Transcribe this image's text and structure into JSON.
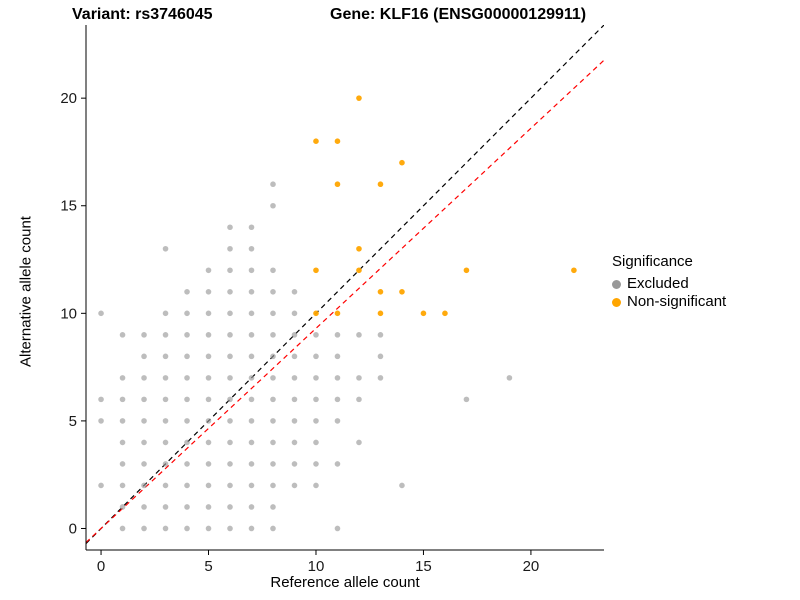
{
  "titles": {
    "left": "Variant: rs3746045",
    "right": "Gene: KLF16 (ENSG00000129911)"
  },
  "axes": {
    "x_label": "Reference allele count",
    "y_label": "Alternative allele count",
    "x_ticks": [
      0,
      5,
      10,
      15,
      20
    ],
    "y_ticks": [
      0,
      5,
      10,
      15,
      20
    ]
  },
  "legend": {
    "title": "Significance",
    "items": [
      {
        "label": "Excluded",
        "color": "#999999"
      },
      {
        "label": "Non-significant",
        "color": "#FFA500"
      }
    ]
  },
  "chart_data": {
    "type": "scatter",
    "title_left": "Variant: rs3746045",
    "title_right": "Gene: KLF16 (ENSG00000129911)",
    "xlabel": "Reference allele count",
    "ylabel": "Alternative allele count",
    "xlim": [
      -0.7,
      23.4
    ],
    "ylim": [
      -1.0,
      23.4
    ],
    "grid": false,
    "legend_position": "right",
    "series": [
      {
        "name": "Excluded",
        "color": "#999999",
        "opacity": 0.65,
        "points": [
          [
            0,
            2
          ],
          [
            0,
            5
          ],
          [
            0,
            6
          ],
          [
            0,
            10
          ],
          [
            1,
            0
          ],
          [
            1,
            1
          ],
          [
            1,
            2
          ],
          [
            1,
            3
          ],
          [
            1,
            4
          ],
          [
            1,
            5
          ],
          [
            1,
            6
          ],
          [
            1,
            7
          ],
          [
            1,
            9
          ],
          [
            2,
            0
          ],
          [
            2,
            1
          ],
          [
            2,
            2
          ],
          [
            2,
            3
          ],
          [
            2,
            4
          ],
          [
            2,
            5
          ],
          [
            2,
            6
          ],
          [
            2,
            7
          ],
          [
            2,
            8
          ],
          [
            2,
            9
          ],
          [
            3,
            0
          ],
          [
            3,
            1
          ],
          [
            3,
            2
          ],
          [
            3,
            3
          ],
          [
            3,
            4
          ],
          [
            3,
            5
          ],
          [
            3,
            6
          ],
          [
            3,
            7
          ],
          [
            3,
            8
          ],
          [
            3,
            9
          ],
          [
            3,
            10
          ],
          [
            3,
            13
          ],
          [
            4,
            0
          ],
          [
            4,
            1
          ],
          [
            4,
            2
          ],
          [
            4,
            3
          ],
          [
            4,
            4
          ],
          [
            4,
            5
          ],
          [
            4,
            6
          ],
          [
            4,
            7
          ],
          [
            4,
            8
          ],
          [
            4,
            9
          ],
          [
            4,
            10
          ],
          [
            4,
            11
          ],
          [
            5,
            0
          ],
          [
            5,
            1
          ],
          [
            5,
            2
          ],
          [
            5,
            3
          ],
          [
            5,
            4
          ],
          [
            5,
            5
          ],
          [
            5,
            6
          ],
          [
            5,
            7
          ],
          [
            5,
            8
          ],
          [
            5,
            9
          ],
          [
            5,
            10
          ],
          [
            5,
            11
          ],
          [
            5,
            12
          ],
          [
            6,
            0
          ],
          [
            6,
            1
          ],
          [
            6,
            2
          ],
          [
            6,
            3
          ],
          [
            6,
            4
          ],
          [
            6,
            5
          ],
          [
            6,
            6
          ],
          [
            6,
            7
          ],
          [
            6,
            8
          ],
          [
            6,
            9
          ],
          [
            6,
            10
          ],
          [
            6,
            11
          ],
          [
            6,
            12
          ],
          [
            6,
            13
          ],
          [
            6,
            14
          ],
          [
            7,
            0
          ],
          [
            7,
            1
          ],
          [
            7,
            2
          ],
          [
            7,
            3
          ],
          [
            7,
            4
          ],
          [
            7,
            5
          ],
          [
            7,
            6
          ],
          [
            7,
            7
          ],
          [
            7,
            8
          ],
          [
            7,
            9
          ],
          [
            7,
            10
          ],
          [
            7,
            11
          ],
          [
            7,
            12
          ],
          [
            7,
            13
          ],
          [
            7,
            14
          ],
          [
            8,
            0
          ],
          [
            8,
            1
          ],
          [
            8,
            2
          ],
          [
            8,
            3
          ],
          [
            8,
            4
          ],
          [
            8,
            5
          ],
          [
            8,
            6
          ],
          [
            8,
            7
          ],
          [
            8,
            8
          ],
          [
            8,
            9
          ],
          [
            8,
            10
          ],
          [
            8,
            11
          ],
          [
            8,
            12
          ],
          [
            8,
            15
          ],
          [
            8,
            16
          ],
          [
            9,
            2
          ],
          [
            9,
            3
          ],
          [
            9,
            4
          ],
          [
            9,
            5
          ],
          [
            9,
            6
          ],
          [
            9,
            7
          ],
          [
            9,
            8
          ],
          [
            9,
            9
          ],
          [
            9,
            10
          ],
          [
            9,
            11
          ],
          [
            10,
            2
          ],
          [
            10,
            3
          ],
          [
            10,
            4
          ],
          [
            10,
            5
          ],
          [
            10,
            6
          ],
          [
            10,
            7
          ],
          [
            10,
            8
          ],
          [
            10,
            9
          ],
          [
            11,
            0
          ],
          [
            11,
            3
          ],
          [
            11,
            5
          ],
          [
            11,
            6
          ],
          [
            11,
            7
          ],
          [
            11,
            8
          ],
          [
            11,
            9
          ],
          [
            12,
            4
          ],
          [
            12,
            6
          ],
          [
            12,
            7
          ],
          [
            12,
            9
          ],
          [
            13,
            7
          ],
          [
            13,
            8
          ],
          [
            13,
            9
          ],
          [
            14,
            2
          ],
          [
            17,
            6
          ],
          [
            19,
            7
          ]
        ]
      },
      {
        "name": "Non-significant",
        "color": "#FFA500",
        "opacity": 0.95,
        "points": [
          [
            10,
            10
          ],
          [
            11,
            10
          ],
          [
            13,
            10
          ],
          [
            15,
            10
          ],
          [
            16,
            10
          ],
          [
            13,
            11
          ],
          [
            14,
            11
          ],
          [
            10,
            12
          ],
          [
            12,
            12
          ],
          [
            17,
            12
          ],
          [
            22,
            12
          ],
          [
            12,
            13
          ],
          [
            11,
            16
          ],
          [
            13,
            16
          ],
          [
            14,
            17
          ],
          [
            10,
            18
          ],
          [
            11,
            18
          ],
          [
            12,
            20
          ]
        ]
      }
    ],
    "lines": [
      {
        "name": "identity-line",
        "slope": 1.0,
        "intercept": 0,
        "color": "#000000",
        "dash": "5,4"
      },
      {
        "name": "fit-line",
        "slope": 0.93,
        "intercept": 0,
        "color": "#FF0000",
        "dash": "5,4"
      }
    ]
  }
}
